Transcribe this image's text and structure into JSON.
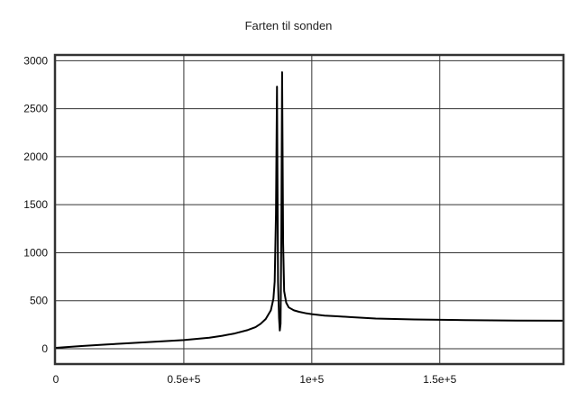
{
  "chart_data": {
    "type": "line",
    "title": "Farten til sonden",
    "xlabel": "",
    "ylabel": "",
    "xlim": [
      0,
      198000
    ],
    "ylim": [
      -150,
      3050
    ],
    "grid": true,
    "x_ticks": [
      {
        "value": 0,
        "label": "0"
      },
      {
        "value": 50000,
        "label": "0.5e+5"
      },
      {
        "value": 100000,
        "label": "1e+5"
      },
      {
        "value": 150000,
        "label": "1.5e+5"
      }
    ],
    "y_ticks": [
      {
        "value": 0,
        "label": "0"
      },
      {
        "value": 500,
        "label": "500"
      },
      {
        "value": 1000,
        "label": "1000"
      },
      {
        "value": 1500,
        "label": "1500"
      },
      {
        "value": 2000,
        "label": "2000"
      },
      {
        "value": 2500,
        "label": "2500"
      },
      {
        "value": 3000,
        "label": "3000"
      }
    ],
    "series": [
      {
        "color": "#000000",
        "x": [
          0,
          10000,
          20000,
          30000,
          40000,
          50000,
          60000,
          65000,
          70000,
          75000,
          78000,
          80000,
          82000,
          84000,
          85000,
          85500,
          86000,
          86400,
          86800,
          87200,
          87500,
          87800,
          88100,
          88400,
          88800,
          89200,
          90000,
          91000,
          93000,
          95000,
          98000,
          100000,
          105000,
          110000,
          115000,
          125000,
          140000,
          160000,
          180000,
          198000
        ],
        "values": [
          10,
          28,
          45,
          60,
          75,
          90,
          115,
          135,
          160,
          195,
          225,
          260,
          310,
          400,
          520,
          700,
          1400,
          2730,
          700,
          320,
          190,
          260,
          1200,
          2880,
          1100,
          600,
          480,
          430,
          400,
          385,
          368,
          360,
          345,
          338,
          330,
          315,
          305,
          298,
          294,
          292
        ]
      }
    ]
  }
}
